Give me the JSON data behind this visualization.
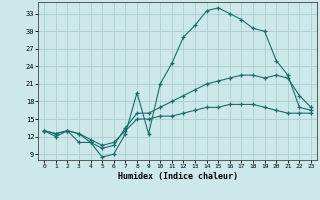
{
  "xlabel": "Humidex (Indice chaleur)",
  "bg_color": "#cce8ea",
  "grid_color": "#aacdd0",
  "line_color": "#1a6b6b",
  "line1_x": [
    0,
    1,
    2,
    3,
    4,
    5,
    6,
    7,
    8,
    9,
    10,
    11,
    12,
    13,
    14,
    15,
    16,
    17,
    18,
    19,
    20,
    21,
    22,
    23
  ],
  "line1_y": [
    13,
    12,
    13,
    11,
    11,
    8.5,
    9,
    12.5,
    19.5,
    12.5,
    21,
    24.5,
    29,
    31,
    33.5,
    34,
    33,
    32,
    30.5,
    30,
    25,
    22.5,
    17,
    16.5
  ],
  "line2_x": [
    0,
    1,
    2,
    3,
    4,
    5,
    6,
    7,
    8,
    9,
    10,
    11,
    12,
    13,
    14,
    15,
    16,
    17,
    18,
    19,
    20,
    21,
    22,
    23
  ],
  "line2_y": [
    13,
    12.5,
    13,
    12.5,
    11,
    10,
    10.5,
    13.5,
    16,
    16,
    17,
    18,
    19,
    20,
    21,
    21.5,
    22,
    22.5,
    22.5,
    22,
    22.5,
    22,
    19,
    17
  ],
  "line3_x": [
    0,
    1,
    2,
    3,
    4,
    5,
    6,
    7,
    8,
    9,
    10,
    11,
    12,
    13,
    14,
    15,
    16,
    17,
    18,
    19,
    20,
    21,
    22,
    23
  ],
  "line3_y": [
    13,
    12.5,
    13,
    12.5,
    11.5,
    10.5,
    11,
    13,
    15,
    15,
    15.5,
    15.5,
    16,
    16.5,
    17,
    17,
    17.5,
    17.5,
    17.5,
    17,
    16.5,
    16,
    16,
    16
  ],
  "yticks": [
    9,
    12,
    15,
    18,
    21,
    24,
    27,
    30,
    33
  ],
  "xticks": [
    0,
    1,
    2,
    3,
    4,
    5,
    6,
    7,
    8,
    9,
    10,
    11,
    12,
    13,
    14,
    15,
    16,
    17,
    18,
    19,
    20,
    21,
    22,
    23
  ],
  "ylim": [
    8,
    35
  ],
  "xlim": [
    -0.5,
    23.5
  ]
}
